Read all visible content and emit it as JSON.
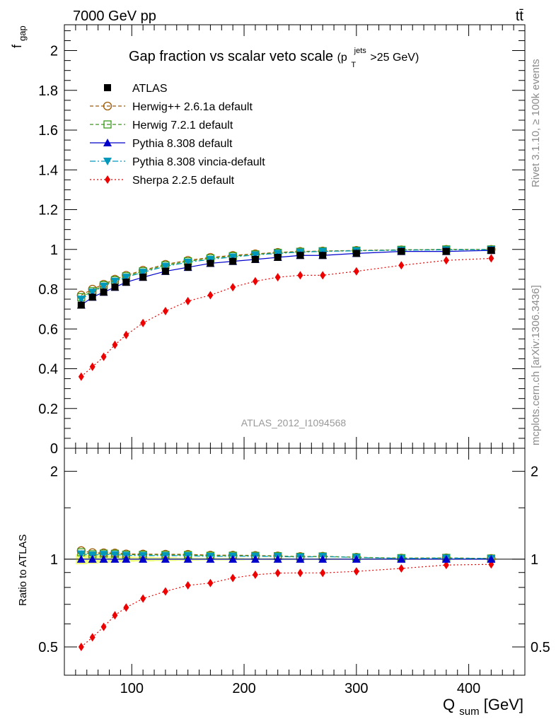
{
  "header": {
    "energy_label": "7000 GeV pp",
    "process_label": "tt̄"
  },
  "side_labels": {
    "rivet_info": "Rivet 3.1.10, ≥ 100k events",
    "source_info": "mcplots.cern.ch [arXiv:1306.3436]"
  },
  "chart_data": {
    "type": "line",
    "title": "Gap fraction vs scalar veto scale",
    "title_cut": {
      "prefix": "(p",
      "sub": "T",
      "sup": "jets",
      "suffix": ">25 GeV)"
    },
    "analysis_label": "ATLAS_2012_I1094568",
    "ylabel_main": {
      "base": "f",
      "sub": "gap"
    },
    "ylabel_ratio": "Ratio to ATLAS",
    "xlabel": {
      "base": "Q",
      "sub": "sum",
      "suffix": " [GeV]"
    },
    "xlim": [
      40,
      450
    ],
    "ylim_main": [
      0,
      2.13
    ],
    "ylim_ratio": [
      0.4,
      2.4
    ],
    "x_ticks": [
      100,
      200,
      300,
      400
    ],
    "x_tick_labels": [
      "100",
      "200",
      "300",
      "400"
    ],
    "y_ticks_main": [
      0,
      0.2,
      0.4,
      0.6,
      0.8,
      1,
      1.2,
      1.4,
      1.6,
      1.8,
      2
    ],
    "y_tick_labels_main": [
      "0",
      "0.2",
      "0.4",
      "0.6",
      "0.8",
      "1",
      "1.2",
      "1.4",
      "1.6",
      "1.8",
      "2"
    ],
    "y_ticks_ratio": [
      0.5,
      1,
      2
    ],
    "y_tick_labels_ratio": [
      "0.5",
      "1",
      "2"
    ],
    "x": [
      55,
      65,
      75,
      85,
      95,
      110,
      130,
      150,
      170,
      190,
      210,
      230,
      250,
      270,
      300,
      340,
      380,
      420
    ],
    "series": [
      {
        "name": "ATLAS",
        "color": "#000000",
        "marker": "square",
        "line": "none",
        "values": [
          0.72,
          0.76,
          0.785,
          0.81,
          0.835,
          0.86,
          0.89,
          0.91,
          0.93,
          0.94,
          0.95,
          0.96,
          0.97,
          0.97,
          0.98,
          0.99,
          0.99,
          0.995
        ]
      },
      {
        "name": "Herwig++ 2.6.1a default",
        "color": "#a05a00",
        "marker": "circle-open",
        "line": "dashed",
        "values": [
          0.77,
          0.8,
          0.825,
          0.85,
          0.87,
          0.895,
          0.925,
          0.945,
          0.96,
          0.97,
          0.978,
          0.985,
          0.99,
          0.992,
          0.995,
          0.998,
          1.0,
          1.0
        ]
      },
      {
        "name": "Herwig 7.2.1 default",
        "color": "#3a9a1a",
        "marker": "square-open",
        "line": "dashed",
        "values": [
          0.76,
          0.79,
          0.82,
          0.845,
          0.865,
          0.89,
          0.92,
          0.94,
          0.955,
          0.966,
          0.975,
          0.983,
          0.988,
          0.991,
          0.994,
          0.998,
          1.0,
          1.0
        ]
      },
      {
        "name": "Pythia 8.308 default",
        "color": "#0000cc",
        "marker": "triangle-up",
        "line": "solid",
        "values": [
          0.72,
          0.76,
          0.785,
          0.81,
          0.835,
          0.86,
          0.89,
          0.91,
          0.93,
          0.94,
          0.95,
          0.96,
          0.97,
          0.97,
          0.98,
          0.99,
          0.99,
          0.995
        ]
      },
      {
        "name": "Pythia 8.308 vincia-default",
        "color": "#0099bb",
        "marker": "triangle-down",
        "line": "dashdot",
        "values": [
          0.75,
          0.785,
          0.815,
          0.84,
          0.86,
          0.885,
          0.915,
          0.935,
          0.95,
          0.962,
          0.972,
          0.98,
          0.986,
          0.99,
          0.993,
          0.996,
          0.998,
          0.999
        ]
      },
      {
        "name": "Sherpa 2.2.5 default",
        "color": "#ee0000",
        "marker": "diamond",
        "line": "dotted",
        "values": [
          0.36,
          0.41,
          0.46,
          0.52,
          0.57,
          0.63,
          0.69,
          0.74,
          0.77,
          0.81,
          0.84,
          0.86,
          0.87,
          0.87,
          0.89,
          0.92,
          0.945,
          0.955
        ]
      }
    ]
  }
}
